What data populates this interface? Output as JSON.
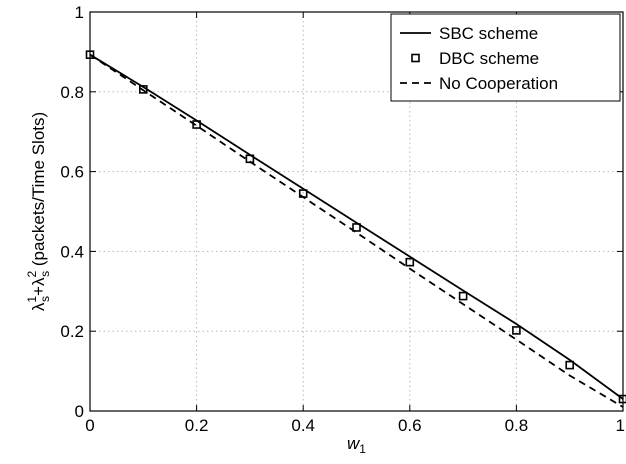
{
  "chart_data": {
    "type": "line",
    "title": "",
    "xlabel": "w",
    "xlabel_subscript": "1",
    "ylabel": {
      "lambda_a": "λ",
      "sup_a": "1",
      "sub_a": "s",
      "plus": "+",
      "lambda_b": "λ",
      "sup_b": "2",
      "sub_b": "s",
      "units": " (packets/Time Slots)"
    },
    "xlim": [
      0,
      1
    ],
    "ylim": [
      0,
      1
    ],
    "xticks": [
      0,
      0.2,
      0.4,
      0.6,
      0.8,
      1
    ],
    "xtick_labels": [
      "0",
      "0.2",
      "0.4",
      "0.6",
      "0.8",
      "1"
    ],
    "yticks": [
      0,
      0.2,
      0.4,
      0.6,
      0.8,
      1
    ],
    "ytick_labels": [
      "0",
      "0.2",
      "0.4",
      "0.6",
      "0.8",
      "1"
    ],
    "grid": true,
    "legend_position": "top-right",
    "series": [
      {
        "name": "SBC scheme",
        "style": "solid",
        "color": "#000000",
        "x": [
          0,
          0.1,
          0.2,
          0.3,
          0.4,
          0.5,
          0.6,
          0.7,
          0.8,
          0.9,
          1.0
        ],
        "y": [
          0.893,
          0.812,
          0.728,
          0.642,
          0.557,
          0.472,
          0.387,
          0.302,
          0.218,
          0.128,
          0.03
        ]
      },
      {
        "name": "DBC scheme",
        "style": "square-markers",
        "color": "#000000",
        "x": [
          0,
          0.1,
          0.2,
          0.3,
          0.4,
          0.5,
          0.6,
          0.7,
          0.8,
          0.9,
          1.0
        ],
        "y": [
          0.893,
          0.806,
          0.718,
          0.632,
          0.545,
          0.46,
          0.373,
          0.288,
          0.202,
          0.115,
          0.03
        ]
      },
      {
        "name": "No Cooperation",
        "style": "dashed",
        "color": "#000000",
        "x": [
          0,
          0.1,
          0.2,
          0.3,
          0.4,
          0.5,
          0.6,
          0.7,
          0.8,
          0.9,
          1.0
        ],
        "y": [
          0.893,
          0.804,
          0.715,
          0.625,
          0.536,
          0.447,
          0.357,
          0.268,
          0.179,
          0.089,
          0.01
        ]
      }
    ]
  }
}
